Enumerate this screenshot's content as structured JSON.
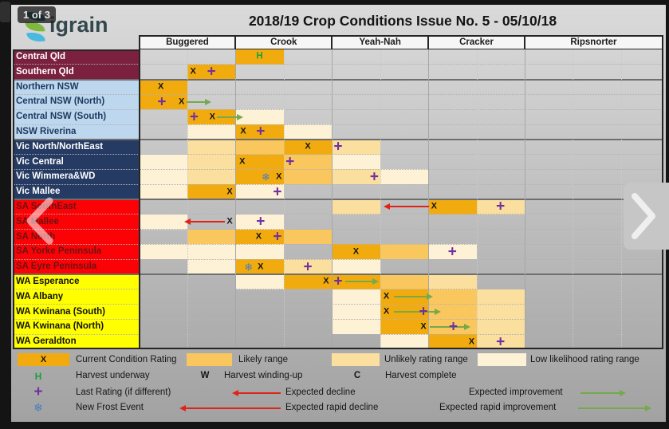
{
  "page": {
    "badge": "1 of 3",
    "brand": "igrain",
    "title": "2018/19 Crop Conditions Issue No. 5 - 05/10/18"
  },
  "colors": {
    "current": "#F2AB0F",
    "likely": "#F9C75D",
    "unlikely": "#FBDF9E",
    "low": "#FDF1D6",
    "purple": "#7030A0",
    "harvest_green": "#1f9e3c",
    "frost_blue": "#4a7ebb",
    "decline_red": "#e02318",
    "improve_green": "#74a94c",
    "group_qld": {
      "bg": "#7C2040",
      "fg": "#ffffff"
    },
    "group_nsw": {
      "bg": "#BDD7EE",
      "fg": "#1F3A60"
    },
    "group_vic": {
      "bg": "#263B63",
      "fg": "#ffffff"
    },
    "group_sa": {
      "bg": "#FB0206",
      "fg": "#6E1212"
    },
    "group_wa": {
      "bg": "#FFFF00",
      "fg": "#111111"
    }
  },
  "chart_data": {
    "type": "heatmap",
    "title": "2018/19 Crop Conditions Issue No. 5 - 05/10/18",
    "columns": [
      "Buggered",
      "Crook",
      "Yeah-Nah",
      "Cracker",
      "Ripsnorter"
    ],
    "unit_note": "positions are in half-column units, 0 = left edge of Buggered, 2 per rating column",
    "shade_levels": [
      "current",
      "likely",
      "unlikely",
      "low"
    ],
    "rows": [
      {
        "region": "Central Qld",
        "group": "qld",
        "segments": [
          [
            2,
            3,
            "current"
          ]
        ],
        "markers": [
          {
            "t": "H",
            "u": 2.5
          }
        ],
        "arrows": []
      },
      {
        "region": "Southern Qld",
        "group": "qld",
        "segments": [
          [
            1,
            2,
            "current"
          ]
        ],
        "markers": [
          {
            "t": "X",
            "u": 1.12
          },
          {
            "t": "plus",
            "u": 1.5
          }
        ],
        "arrows": []
      },
      {
        "region": "Northern NSW",
        "group": "nsw",
        "segments": [
          [
            0,
            1,
            "current"
          ]
        ],
        "markers": [
          {
            "t": "X",
            "u": 0.45
          }
        ],
        "arrows": []
      },
      {
        "region": "Central NSW (North)",
        "group": "nsw",
        "segments": [
          [
            0,
            1,
            "current"
          ]
        ],
        "markers": [
          {
            "t": "plus",
            "u": 0.47
          },
          {
            "t": "X",
            "u": 0.88
          }
        ],
        "arrows": [
          {
            "u1": 0.98,
            "u2": 1.38,
            "c": "green"
          }
        ]
      },
      {
        "region": "Central NSW (South)",
        "group": "nsw",
        "segments": [
          [
            1,
            2,
            "current"
          ],
          [
            2,
            3,
            "low"
          ]
        ],
        "markers": [
          {
            "t": "plus",
            "u": 1.14
          },
          {
            "t": "X",
            "u": 1.52
          }
        ],
        "arrows": [
          {
            "u1": 1.62,
            "u2": 2.05,
            "c": "green"
          }
        ]
      },
      {
        "region": "NSW Riverina",
        "group": "nsw",
        "segments": [
          [
            1,
            2,
            "low"
          ],
          [
            2,
            3,
            "current"
          ],
          [
            3,
            4,
            "low"
          ]
        ],
        "markers": [
          {
            "t": "X",
            "u": 2.16
          },
          {
            "t": "plus",
            "u": 2.52
          }
        ],
        "arrows": []
      },
      {
        "region": "Vic North/NorthEast",
        "group": "vic",
        "segments": [
          [
            1,
            2,
            "unlikely"
          ],
          [
            2,
            3,
            "likely"
          ],
          [
            3,
            4,
            "current"
          ],
          [
            4,
            5,
            "unlikely"
          ]
        ],
        "markers": [
          {
            "t": "X",
            "u": 3.5
          },
          {
            "t": "plus",
            "u": 4.13
          }
        ],
        "arrows": []
      },
      {
        "region": "Vic Central",
        "group": "vic",
        "segments": [
          [
            0,
            1,
            "low"
          ],
          [
            1,
            2,
            "unlikely"
          ],
          [
            2,
            3,
            "current"
          ],
          [
            3,
            4,
            "likely"
          ],
          [
            4,
            5,
            "low"
          ]
        ],
        "markers": [
          {
            "t": "X",
            "u": 2.14
          },
          {
            "t": "plus",
            "u": 3.13
          }
        ],
        "arrows": []
      },
      {
        "region": "Vic Wimmera&WD",
        "group": "vic",
        "segments": [
          [
            0,
            1,
            "low"
          ],
          [
            1,
            2,
            "unlikely"
          ],
          [
            2,
            3,
            "current"
          ],
          [
            3,
            4,
            "likely"
          ],
          [
            4,
            5,
            "unlikely"
          ],
          [
            5,
            6,
            "low"
          ]
        ],
        "markers": [
          {
            "t": "frost",
            "u": 2.63
          },
          {
            "t": "X",
            "u": 2.9
          },
          {
            "t": "plus",
            "u": 4.88
          }
        ],
        "arrows": []
      },
      {
        "region": "Vic Mallee",
        "group": "vic",
        "segments": [
          [
            0,
            1,
            "low"
          ],
          [
            1,
            2,
            "current"
          ],
          [
            2,
            3,
            "low"
          ]
        ],
        "markers": [
          {
            "t": "X",
            "u": 1.88
          },
          {
            "t": "plus",
            "u": 2.87
          }
        ],
        "arrows": []
      },
      {
        "region": "SA SouthEast",
        "group": "sa",
        "segments": [
          [
            4,
            5,
            "unlikely"
          ],
          [
            6,
            7,
            "current"
          ],
          [
            7,
            8,
            "unlikely"
          ]
        ],
        "markers": [
          {
            "t": "X",
            "u": 6.12
          },
          {
            "t": "plus",
            "u": 7.5
          }
        ],
        "arrows": [
          {
            "u1": 6.02,
            "u2": 5.18,
            "c": "red"
          }
        ]
      },
      {
        "region": "SA Mallee",
        "group": "sa",
        "segments": [
          [
            0,
            1,
            "low"
          ],
          [
            2,
            3,
            "low"
          ]
        ],
        "markers": [
          {
            "t": "X",
            "u": 1.88
          },
          {
            "t": "plus",
            "u": 2.52
          }
        ],
        "arrows": [
          {
            "u1": 1.78,
            "u2": 1.05,
            "c": "red"
          }
        ]
      },
      {
        "region": "SA North",
        "group": "sa",
        "segments": [
          [
            1,
            2,
            "likely"
          ],
          [
            2,
            3,
            "current"
          ],
          [
            3,
            4,
            "likely"
          ]
        ],
        "markers": [
          {
            "t": "X",
            "u": 2.48
          },
          {
            "t": "plus",
            "u": 2.87
          }
        ],
        "arrows": []
      },
      {
        "region": "SA Yorke Peninsula",
        "group": "sa",
        "segments": [
          [
            0,
            3,
            "low"
          ],
          [
            4,
            5,
            "current"
          ],
          [
            5,
            6,
            "likely"
          ],
          [
            6,
            7,
            "low"
          ]
        ],
        "markers": [
          {
            "t": "X",
            "u": 4.5
          },
          {
            "t": "plus",
            "u": 6.5
          }
        ],
        "arrows": []
      },
      {
        "region": "SA Eyre Peninsula",
        "group": "sa",
        "segments": [
          [
            1,
            2,
            "low"
          ],
          [
            2,
            3,
            "current"
          ],
          [
            3,
            4,
            "unlikely"
          ],
          [
            4,
            5,
            "low"
          ]
        ],
        "markers": [
          {
            "t": "frost",
            "u": 2.27
          },
          {
            "t": "X",
            "u": 2.52
          },
          {
            "t": "plus",
            "u": 3.5
          }
        ],
        "arrows": []
      },
      {
        "region": "WA Esperance",
        "group": "wa",
        "segments": [
          [
            2,
            3,
            "low"
          ],
          [
            3,
            5,
            "current"
          ],
          [
            5,
            6,
            "likely"
          ],
          [
            6,
            7,
            "unlikely"
          ]
        ],
        "markers": [
          {
            "t": "X",
            "u": 3.88
          },
          {
            "t": "plus",
            "u": 4.13
          }
        ],
        "arrows": [
          {
            "u1": 4.27,
            "u2": 4.85,
            "c": "green"
          }
        ]
      },
      {
        "region": "WA Albany",
        "group": "wa",
        "segments": [
          [
            4,
            5,
            "low"
          ],
          [
            5,
            6,
            "current"
          ],
          [
            6,
            7,
            "likely"
          ],
          [
            7,
            8,
            "unlikely"
          ]
        ],
        "markers": [
          {
            "t": "X",
            "u": 5.13
          }
        ],
        "arrows": [
          {
            "u1": 5.28,
            "u2": 5.98,
            "c": "green"
          }
        ]
      },
      {
        "region": "WA Kwinana (South)",
        "group": "wa",
        "segments": [
          [
            4,
            5,
            "low"
          ],
          [
            5,
            6,
            "current"
          ],
          [
            6,
            7,
            "likely"
          ],
          [
            7,
            8,
            "unlikely"
          ]
        ],
        "markers": [
          {
            "t": "X",
            "u": 5.13
          },
          {
            "t": "plus",
            "u": 5.9
          }
        ],
        "arrows": [
          {
            "u1": 5.28,
            "u2": 6.15,
            "c": "green"
          }
        ]
      },
      {
        "region": "WA Kwinana (North)",
        "group": "wa",
        "segments": [
          [
            4,
            5,
            "low"
          ],
          [
            5,
            6,
            "current"
          ],
          [
            6,
            7,
            "likely"
          ],
          [
            7,
            8,
            "unlikely"
          ]
        ],
        "markers": [
          {
            "t": "X",
            "u": 5.9
          },
          {
            "t": "plus",
            "u": 6.52
          }
        ],
        "arrows": [
          {
            "u1": 6.03,
            "u2": 6.76,
            "c": "green"
          }
        ]
      },
      {
        "region": "WA Geraldton",
        "group": "wa",
        "segments": [
          [
            5,
            6,
            "low"
          ],
          [
            6,
            7,
            "current"
          ],
          [
            7,
            8,
            "unlikely"
          ]
        ],
        "markers": [
          {
            "t": "X",
            "u": 6.9
          },
          {
            "t": "plus",
            "u": 7.5
          }
        ],
        "arrows": []
      }
    ]
  },
  "legend": {
    "items": [
      {
        "symbol": "X",
        "label": "Current Condition Rating"
      },
      {
        "label": "Likely range"
      },
      {
        "label": "Unlikely rating range"
      },
      {
        "label": "Low likelihood rating range"
      },
      {
        "symbol": "H",
        "label": "Harvest underway"
      },
      {
        "symbol": "W",
        "label": "Harvest winding-up"
      },
      {
        "symbol": "C",
        "label": "Harvest complete"
      },
      {
        "symbol": "+",
        "label": "Last Rating (if different)"
      },
      {
        "label": "Expected decline"
      },
      {
        "label": "Expected improvement"
      },
      {
        "symbol": "❄",
        "label": "New Frost Event"
      },
      {
        "label": "Expected rapid decline"
      },
      {
        "label": "Expected rapid improvement"
      }
    ]
  }
}
